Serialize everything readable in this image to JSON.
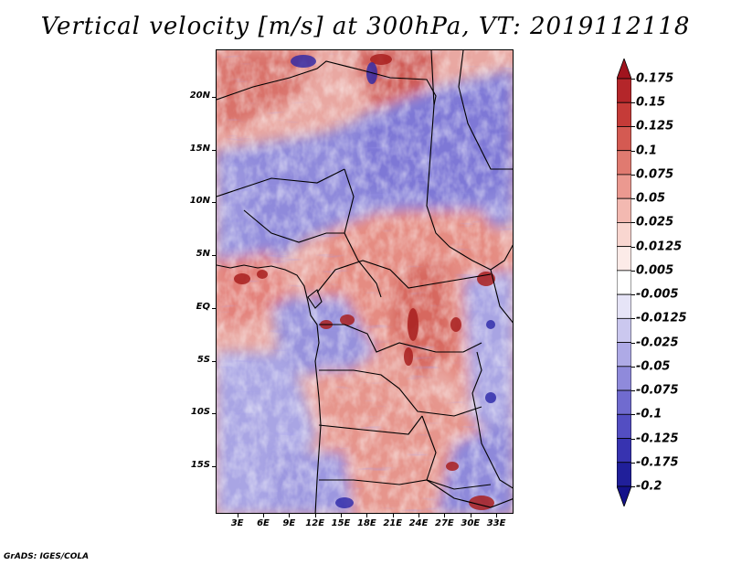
{
  "title": "Vertical velocity [m/s] at 300hPa, VT: 2019112118",
  "footer": "GrADS: IGES/COLA",
  "map": {
    "lat_labels": [
      "20N",
      "15N",
      "10N",
      "5N",
      "EQ",
      "5S",
      "10S",
      "15S"
    ],
    "lat_values": [
      20,
      15,
      10,
      5,
      0,
      -5,
      -10,
      -15
    ],
    "lon_labels": [
      "3E",
      "6E",
      "9E",
      "12E",
      "15E",
      "18E",
      "21E",
      "24E",
      "27E",
      "30E",
      "33E"
    ],
    "lon_values": [
      3,
      6,
      9,
      12,
      15,
      18,
      21,
      24,
      27,
      30,
      33
    ],
    "lat_range": [
      -19.5,
      24.5
    ],
    "lon_range": [
      0.5,
      35.0
    ]
  },
  "colorbar": {
    "labels": [
      "0.175",
      "0.15",
      "0.125",
      "0.1",
      "0.075",
      "0.05",
      "0.025",
      "0.0125",
      "0.005",
      "-0.005",
      "-0.0125",
      "-0.025",
      "-0.05",
      "-0.075",
      "-0.1",
      "-0.125",
      "-0.175",
      "-0.2"
    ],
    "colors": [
      "#a0141e",
      "#b4262a",
      "#c53b38",
      "#d45a52",
      "#e07a70",
      "#eb9990",
      "#f3b9b1",
      "#f9d6d0",
      "#fcebe8",
      "#ffffff",
      "#e6e4f7",
      "#cbc8ef",
      "#aeaae6",
      "#8f8adb",
      "#706bcf",
      "#534ec2",
      "#3733b0",
      "#201f9a",
      "#14128a"
    ]
  }
}
